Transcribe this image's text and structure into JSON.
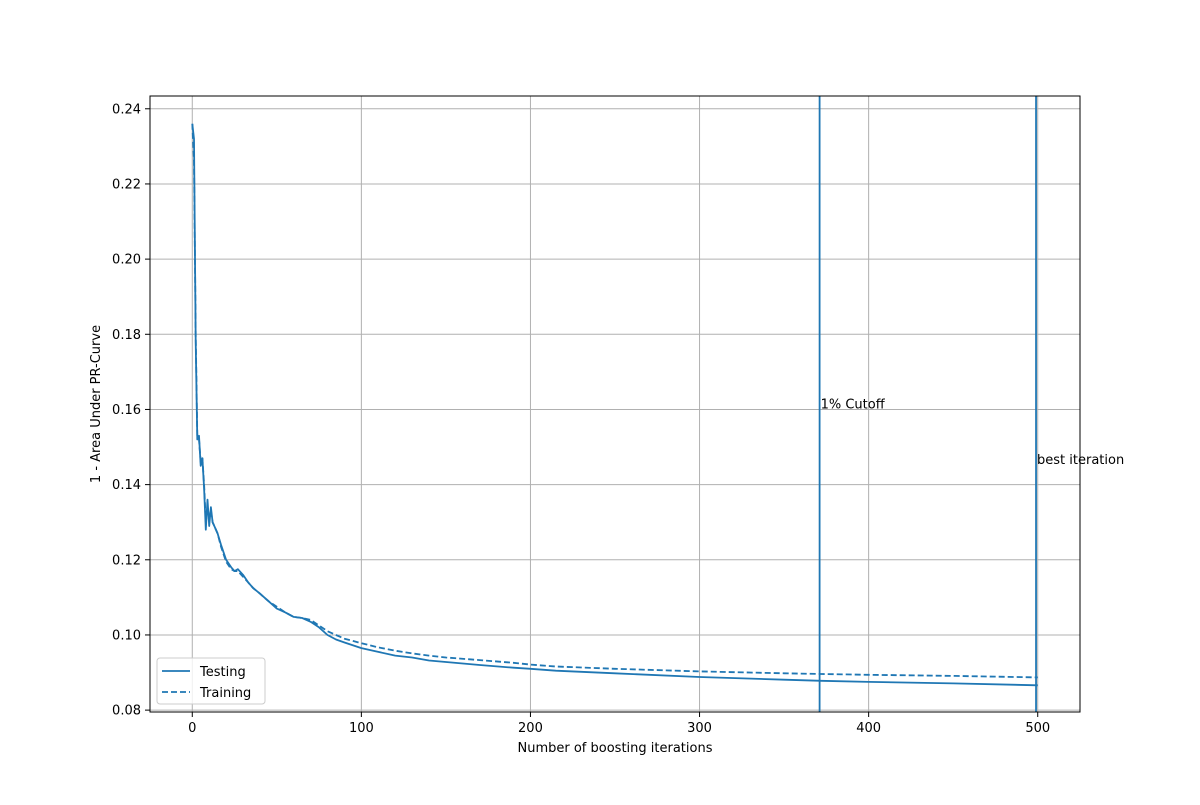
{
  "chart_data": {
    "type": "line",
    "title": "",
    "xlabel": "Number of boosting iterations",
    "ylabel": "1 - Area Under PR-Curve",
    "xlim": [
      -25,
      525
    ],
    "ylim": [
      0.0795,
      0.2434
    ],
    "xticks": [
      0,
      100,
      200,
      300,
      400,
      500
    ],
    "yticks": [
      0.08,
      0.1,
      0.12,
      0.14,
      0.16,
      0.18,
      0.2,
      0.22,
      0.24
    ],
    "grid": true,
    "legend": {
      "position": "lower-left"
    },
    "colors": {
      "series": "#1f77b4",
      "grid": "#b0b0b0"
    },
    "series": [
      {
        "name": "Testing",
        "style": "solid",
        "points": [
          [
            0,
            0.236
          ],
          [
            1,
            0.232
          ],
          [
            2,
            0.178
          ],
          [
            3,
            0.152
          ],
          [
            4,
            0.153
          ],
          [
            5,
            0.145
          ],
          [
            6,
            0.147
          ],
          [
            7,
            0.139
          ],
          [
            8,
            0.128
          ],
          [
            9,
            0.136
          ],
          [
            10,
            0.129
          ],
          [
            11,
            0.134
          ],
          [
            12,
            0.13
          ],
          [
            13,
            0.129
          ],
          [
            15,
            0.127
          ],
          [
            17,
            0.124
          ],
          [
            20,
            0.12
          ],
          [
            23,
            0.118
          ],
          [
            25,
            0.117
          ],
          [
            27,
            0.1175
          ],
          [
            30,
            0.116
          ],
          [
            33,
            0.114
          ],
          [
            36,
            0.1125
          ],
          [
            40,
            0.111
          ],
          [
            45,
            0.109
          ],
          [
            50,
            0.107
          ],
          [
            55,
            0.106
          ],
          [
            60,
            0.1048
          ],
          [
            65,
            0.1045
          ],
          [
            70,
            0.1035
          ],
          [
            75,
            0.102
          ],
          [
            80,
            0.1
          ],
          [
            85,
            0.0988
          ],
          [
            90,
            0.098
          ],
          [
            100,
            0.0965
          ],
          [
            110,
            0.0955
          ],
          [
            120,
            0.0945
          ],
          [
            130,
            0.094
          ],
          [
            140,
            0.0932
          ],
          [
            150,
            0.0928
          ],
          [
            170,
            0.092
          ],
          [
            190,
            0.0913
          ],
          [
            200,
            0.091
          ],
          [
            215,
            0.0905
          ],
          [
            250,
            0.0898
          ],
          [
            300,
            0.0888
          ],
          [
            350,
            0.0881
          ],
          [
            372,
            0.0878
          ],
          [
            400,
            0.0875
          ],
          [
            450,
            0.0871
          ],
          [
            500,
            0.0866
          ]
        ]
      },
      {
        "name": "Training",
        "style": "dashed",
        "points": [
          [
            0,
            0.236
          ],
          [
            1,
            0.226
          ],
          [
            2,
            0.18
          ],
          [
            3,
            0.153
          ],
          [
            4,
            0.152
          ],
          [
            5,
            0.146
          ],
          [
            6,
            0.147
          ],
          [
            7,
            0.14
          ],
          [
            8,
            0.13
          ],
          [
            9,
            0.134
          ],
          [
            10,
            0.131
          ],
          [
            11,
            0.133
          ],
          [
            12,
            0.13
          ],
          [
            13,
            0.129
          ],
          [
            15,
            0.127
          ],
          [
            17,
            0.1235
          ],
          [
            20,
            0.1195
          ],
          [
            23,
            0.1175
          ],
          [
            25,
            0.117
          ],
          [
            27,
            0.117
          ],
          [
            30,
            0.1155
          ],
          [
            33,
            0.114
          ],
          [
            36,
            0.1125
          ],
          [
            40,
            0.111
          ],
          [
            45,
            0.109
          ],
          [
            50,
            0.1075
          ],
          [
            55,
            0.106
          ],
          [
            60,
            0.1048
          ],
          [
            65,
            0.1045
          ],
          [
            70,
            0.104
          ],
          [
            75,
            0.1025
          ],
          [
            80,
            0.101
          ],
          [
            85,
            0.1
          ],
          [
            90,
            0.099
          ],
          [
            100,
            0.0978
          ],
          [
            110,
            0.0967
          ],
          [
            120,
            0.0958
          ],
          [
            130,
            0.0951
          ],
          [
            140,
            0.0945
          ],
          [
            150,
            0.094
          ],
          [
            170,
            0.0933
          ],
          [
            190,
            0.0926
          ],
          [
            200,
            0.0921
          ],
          [
            215,
            0.0916
          ],
          [
            250,
            0.091
          ],
          [
            300,
            0.0903
          ],
          [
            350,
            0.0898
          ],
          [
            372,
            0.0896
          ],
          [
            400,
            0.0894
          ],
          [
            450,
            0.0891
          ],
          [
            500,
            0.0887
          ]
        ]
      }
    ],
    "vlines": [
      {
        "x": 371,
        "label": "1% Cutoff",
        "label_y": 0.1615
      },
      {
        "x": 499,
        "label": "best iteration",
        "label_y": 0.1467
      }
    ]
  }
}
